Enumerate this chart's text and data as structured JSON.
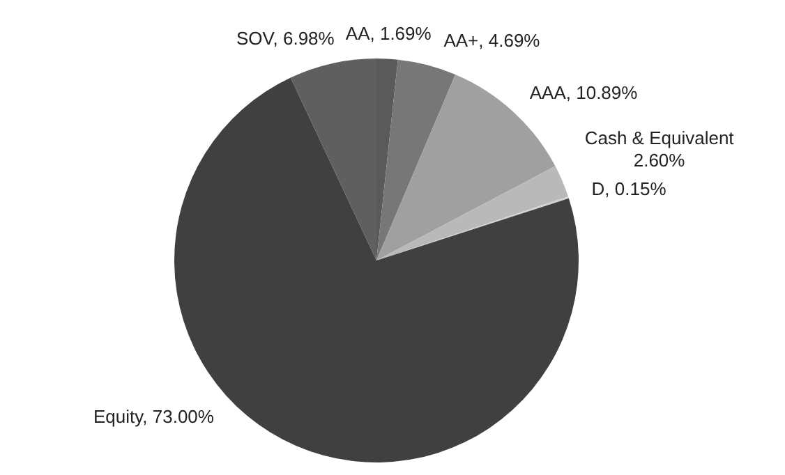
{
  "chart_data": {
    "type": "pie",
    "categories": [
      "AA",
      "AA+",
      "AAA",
      "Cash & Equivalent",
      "D",
      "Equity",
      "SOV"
    ],
    "values": [
      1.69,
      4.69,
      10.89,
      2.6,
      0.15,
      73.0,
      6.98
    ],
    "value_labels": [
      "1.69%",
      "4.69%",
      "10.89%",
      "2.60%",
      "0.15%",
      "73.00%",
      "6.98%"
    ],
    "colors": [
      "#5a5a5a",
      "#777777",
      "#a0a0a0",
      "#b9b9b9",
      "#d2d2d2",
      "#404040",
      "#5f5f5f"
    ],
    "legend": false
  }
}
